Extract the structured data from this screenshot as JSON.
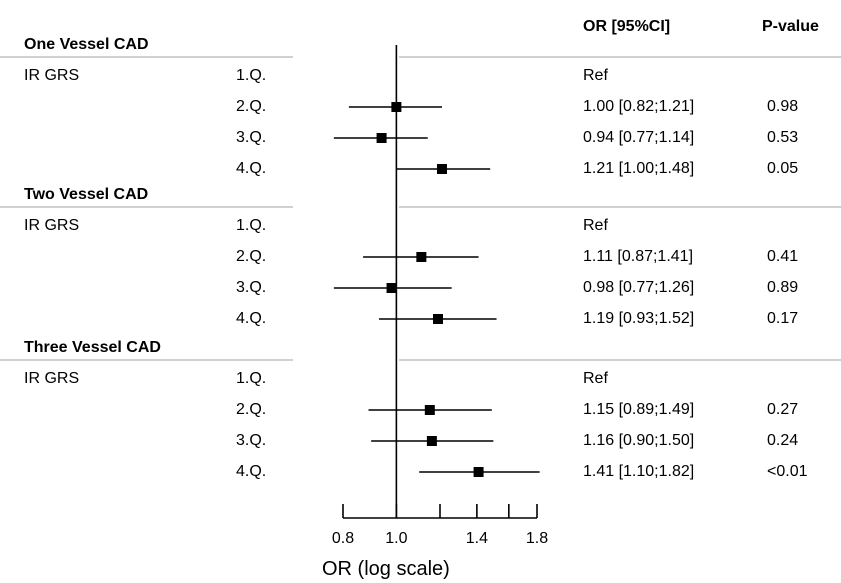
{
  "chart_data": {
    "type": "forest",
    "xlabel": "OR (log scale)",
    "x_scale": "log",
    "xlim": [
      0.8,
      1.8
    ],
    "x_ticks": [
      0.8,
      1.0,
      1.2,
      1.4,
      1.6,
      1.8
    ],
    "x_tick_labels": [
      "0.8",
      "1.0",
      "",
      "1.4",
      "",
      "1.8"
    ],
    "reference_line": 1.0,
    "columns": {
      "or_ci": "OR [95%CI]",
      "p_value": "P-value"
    },
    "groups": [
      {
        "name": "One Vessel CAD",
        "rows": [
          {
            "variable": "IR GRS",
            "level": "1.Q.",
            "or_text": "Ref",
            "p_text": "",
            "or": null,
            "lo": null,
            "hi": null
          },
          {
            "variable": "",
            "level": "2.Q.",
            "or_text": "1.00 [0.82;1.21]",
            "p_text": "0.98",
            "or": 1.0,
            "lo": 0.82,
            "hi": 1.21
          },
          {
            "variable": "",
            "level": "3.Q.",
            "or_text": "0.94 [0.77;1.14]",
            "p_text": "0.53",
            "or": 0.94,
            "lo": 0.77,
            "hi": 1.14
          },
          {
            "variable": "",
            "level": "4.Q.",
            "or_text": "1.21 [1.00;1.48]",
            "p_text": "0.05",
            "or": 1.21,
            "lo": 1.0,
            "hi": 1.48
          }
        ]
      },
      {
        "name": "Two Vessel CAD",
        "rows": [
          {
            "variable": "IR GRS",
            "level": "1.Q.",
            "or_text": "Ref",
            "p_text": "",
            "or": null,
            "lo": null,
            "hi": null
          },
          {
            "variable": "",
            "level": "2.Q.",
            "or_text": "1.11 [0.87;1.41]",
            "p_text": "0.41",
            "or": 1.11,
            "lo": 0.87,
            "hi": 1.41
          },
          {
            "variable": "",
            "level": "3.Q.",
            "or_text": "0.98 [0.77;1.26]",
            "p_text": "0.89",
            "or": 0.98,
            "lo": 0.77,
            "hi": 1.26
          },
          {
            "variable": "",
            "level": "4.Q.",
            "or_text": "1.19 [0.93;1.52]",
            "p_text": "0.17",
            "or": 1.19,
            "lo": 0.93,
            "hi": 1.52
          }
        ]
      },
      {
        "name": "Three Vessel CAD",
        "rows": [
          {
            "variable": "IR GRS",
            "level": "1.Q.",
            "or_text": "Ref",
            "p_text": "",
            "or": null,
            "lo": null,
            "hi": null
          },
          {
            "variable": "",
            "level": "2.Q.",
            "or_text": "1.15 [0.89;1.49]",
            "p_text": "0.27",
            "or": 1.15,
            "lo": 0.89,
            "hi": 1.49
          },
          {
            "variable": "",
            "level": "3.Q.",
            "or_text": "1.16 [0.90;1.50]",
            "p_text": "0.24",
            "or": 1.16,
            "lo": 0.9,
            "hi": 1.5
          },
          {
            "variable": "",
            "level": "4.Q.",
            "or_text": "1.41 [1.10;1.82]",
            "p_text": "<0.01",
            "or": 1.41,
            "lo": 1.1,
            "hi": 1.82
          }
        ]
      }
    ]
  }
}
